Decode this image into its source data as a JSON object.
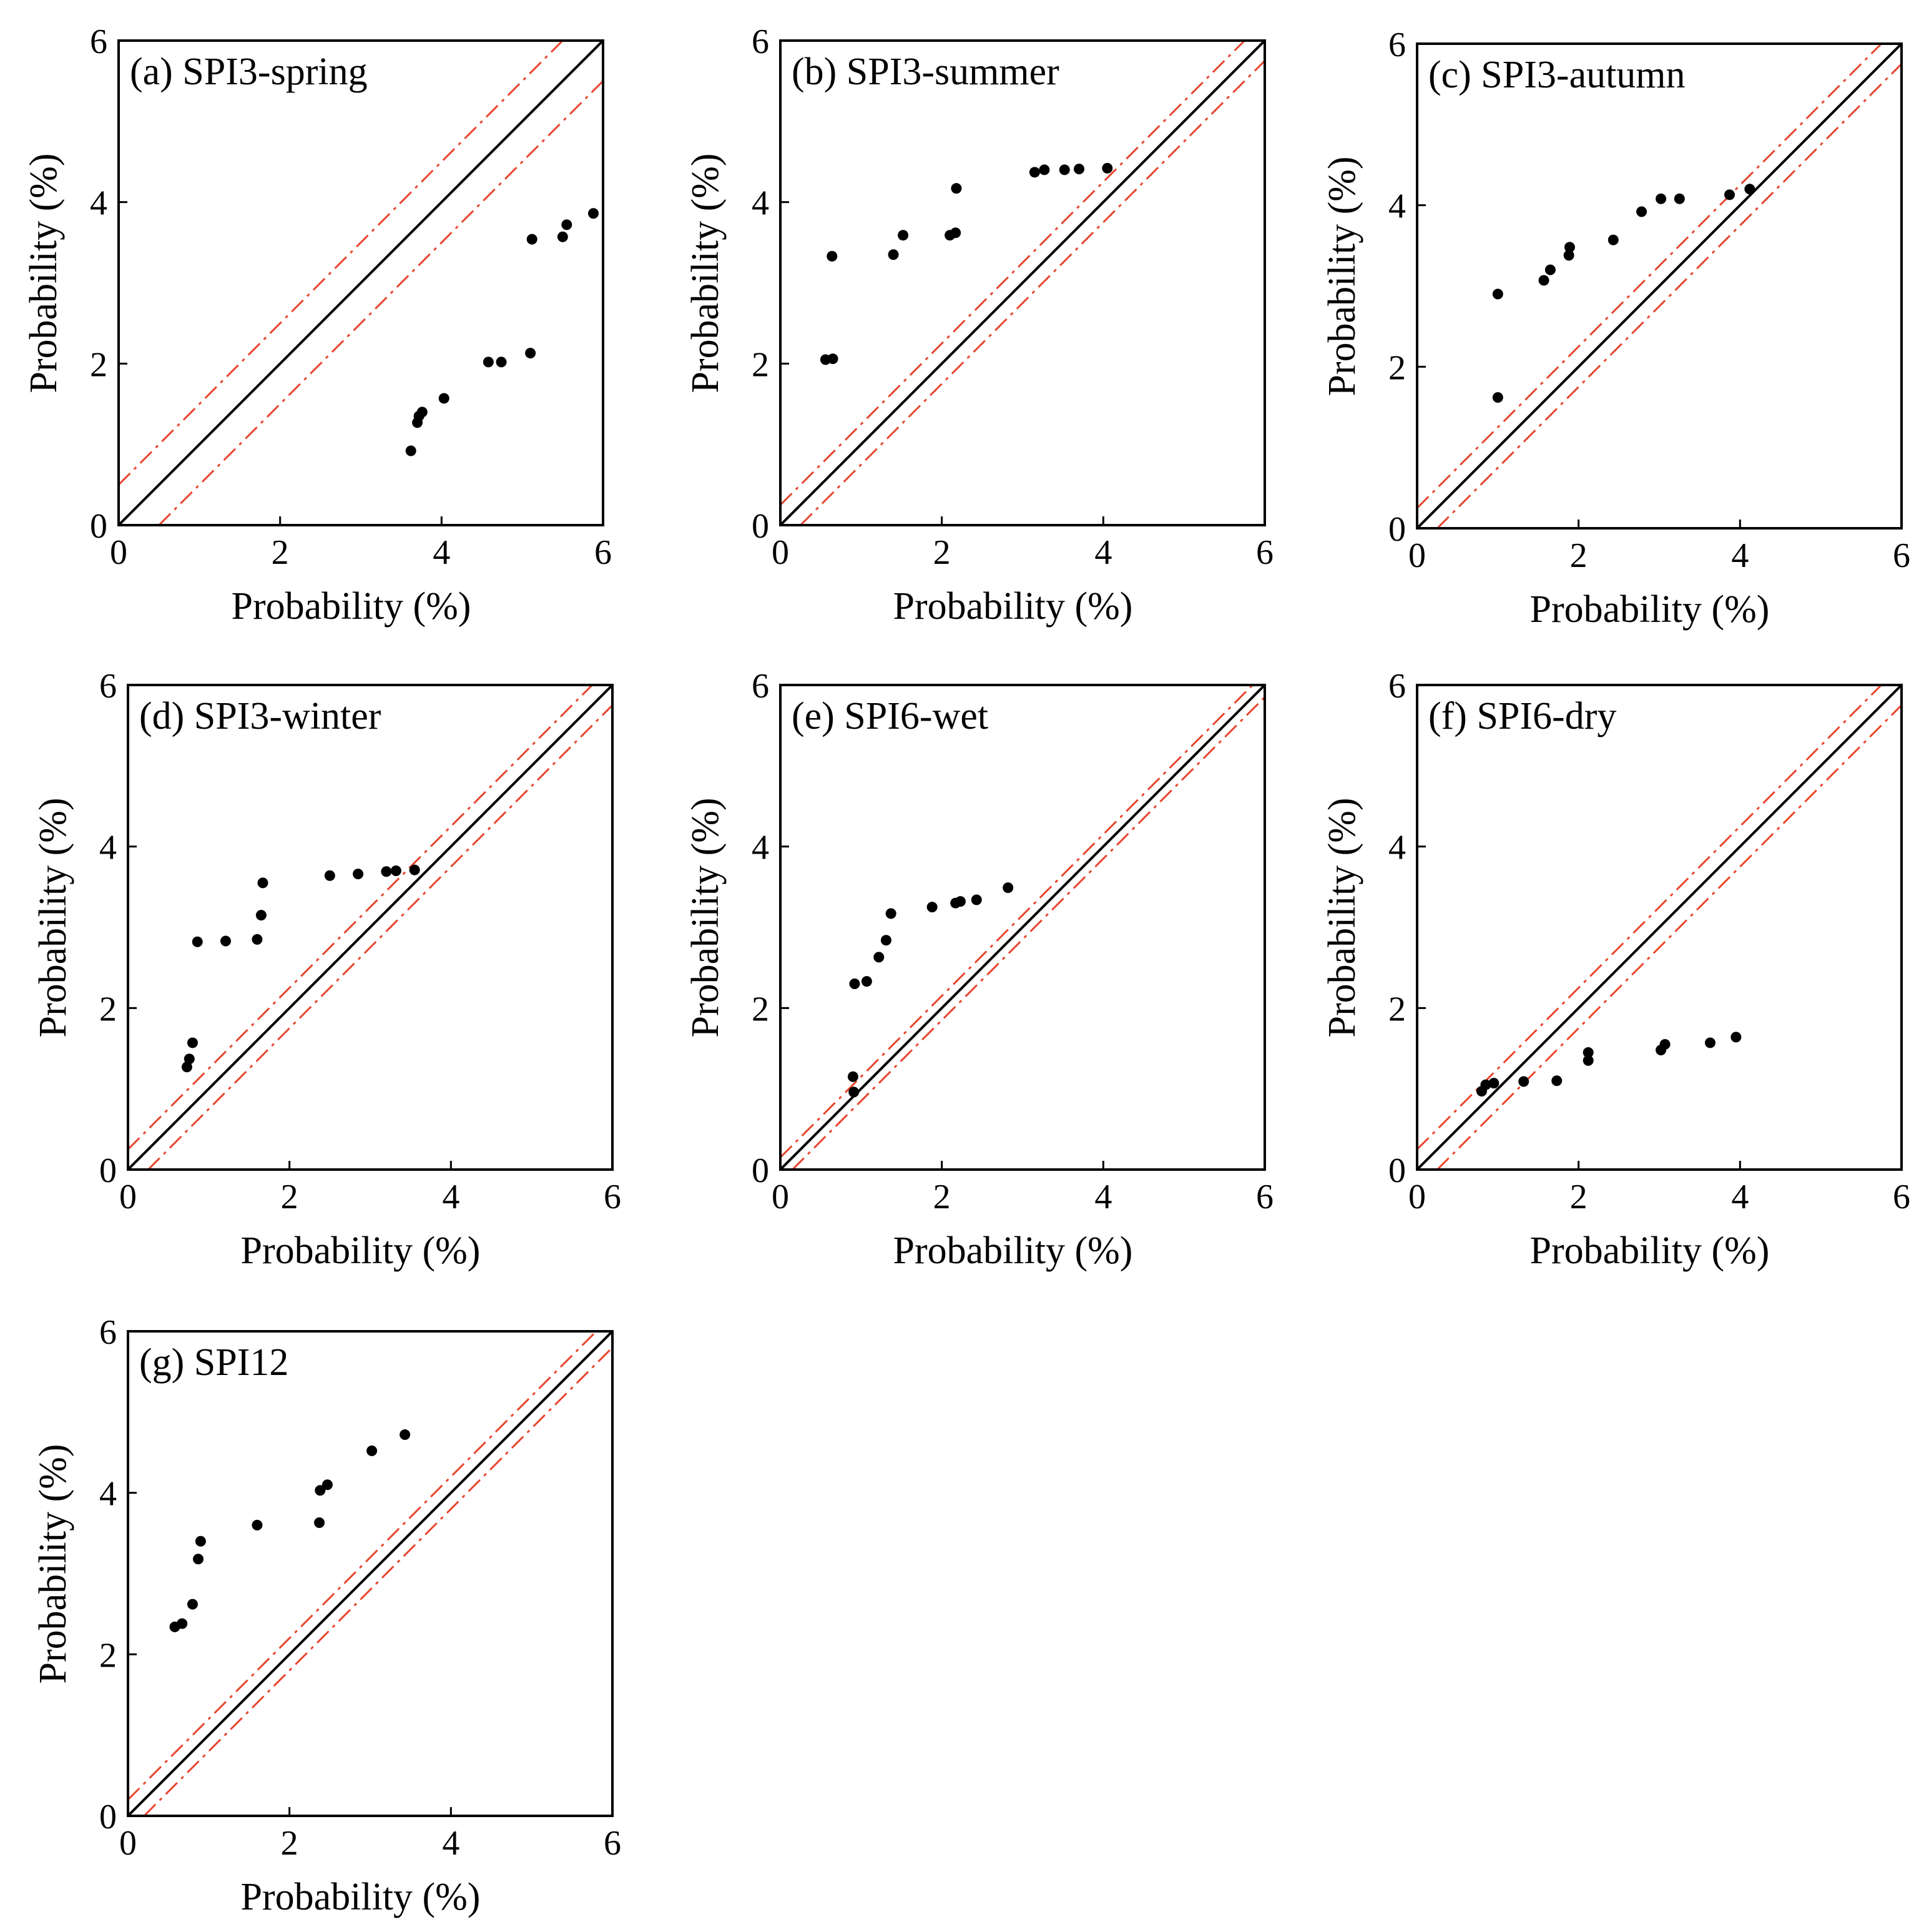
{
  "chart_data": [
    {
      "id": "a",
      "type": "scatter",
      "title": "(a) SPI3-spring",
      "xlabel": "Probability (%)",
      "ylabel": "Probability (%)",
      "xlim": [
        0,
        6
      ],
      "ylim": [
        0,
        6
      ],
      "ticks": [
        0,
        2,
        4,
        6
      ],
      "tick_labels": [
        "0",
        "2",
        "4",
        "6"
      ],
      "band_offset": 0.5,
      "x": [
        3.62,
        3.7,
        3.72,
        3.76,
        4.03,
        4.58,
        4.74,
        5.1,
        5.12,
        5.5,
        5.55,
        5.88
      ],
      "y": [
        0.92,
        1.27,
        1.35,
        1.4,
        1.57,
        2.02,
        2.02,
        2.13,
        3.54,
        3.57,
        3.72,
        3.86
      ]
    },
    {
      "id": "b",
      "type": "scatter",
      "title": "(b) SPI3-summer",
      "xlabel": "Probability (%)",
      "ylabel": "Probability (%)",
      "xlim": [
        0,
        6
      ],
      "ylim": [
        0,
        6
      ],
      "ticks": [
        0,
        2,
        4,
        6
      ],
      "tick_labels": [
        "0",
        "2",
        "4",
        "6"
      ],
      "band_offset": 0.25,
      "x": [
        0.56,
        0.65,
        0.64,
        1.4,
        1.52,
        2.1,
        2.17,
        2.18,
        3.15,
        3.27,
        3.52,
        3.7,
        4.05
      ],
      "y": [
        2.05,
        2.06,
        3.33,
        3.35,
        3.59,
        3.59,
        3.62,
        4.17,
        4.37,
        4.4,
        4.4,
        4.41,
        4.42
      ]
    },
    {
      "id": "c",
      "type": "scatter",
      "title": "(c) SPI3-autumn",
      "xlabel": "Probability (%)",
      "ylabel": "Probability (%)",
      "xlim": [
        0,
        6
      ],
      "ylim": [
        0,
        6
      ],
      "ticks": [
        0,
        2,
        4,
        6
      ],
      "tick_labels": [
        "0",
        "2",
        "4",
        "6"
      ],
      "band_offset": 0.25,
      "x": [
        1.0,
        1.0,
        1.57,
        1.65,
        1.88,
        1.89,
        2.43,
        2.78,
        3.02,
        3.25,
        3.87,
        4.12
      ],
      "y": [
        1.62,
        2.9,
        3.07,
        3.2,
        3.38,
        3.48,
        3.57,
        3.92,
        4.08,
        4.08,
        4.13,
        4.2
      ]
    },
    {
      "id": "d",
      "type": "scatter",
      "title": "(d) SPI3-winter",
      "xlabel": "Probability (%)",
      "ylabel": "Probability (%)",
      "xlim": [
        0,
        6
      ],
      "ylim": [
        0,
        6
      ],
      "ticks": [
        0,
        2,
        4,
        6
      ],
      "tick_labels": [
        "0",
        "2",
        "4",
        "6"
      ],
      "band_offset": 0.25,
      "x": [
        0.73,
        0.76,
        0.8,
        0.86,
        1.21,
        1.6,
        1.65,
        1.67,
        2.5,
        2.85,
        3.2,
        3.32,
        3.55
      ],
      "y": [
        1.27,
        1.37,
        1.57,
        2.82,
        2.83,
        2.85,
        3.15,
        3.55,
        3.64,
        3.66,
        3.69,
        3.7,
        3.71
      ]
    },
    {
      "id": "e",
      "type": "scatter",
      "title": "(e) SPI6-wet",
      "xlabel": "Probability (%)",
      "ylabel": "Probability (%)",
      "xlim": [
        0,
        6
      ],
      "ylim": [
        0,
        6
      ],
      "ticks": [
        0,
        2,
        4,
        6
      ],
      "tick_labels": [
        "0",
        "2",
        "4",
        "6"
      ],
      "band_offset": 0.15,
      "x": [
        0.91,
        0.9,
        0.92,
        1.07,
        1.22,
        1.31,
        1.37,
        1.88,
        2.17,
        2.23,
        2.43,
        2.82
      ],
      "y": [
        0.96,
        1.15,
        2.3,
        2.33,
        2.63,
        2.84,
        3.17,
        3.25,
        3.3,
        3.32,
        3.34,
        3.49
      ]
    },
    {
      "id": "f",
      "type": "scatter",
      "title": "(f) SPI6-dry",
      "xlabel": "Probability (%)",
      "ylabel": "Probability (%)",
      "xlim": [
        0,
        6
      ],
      "ylim": [
        0,
        6
      ],
      "ticks": [
        0,
        2,
        4,
        6
      ],
      "tick_labels": [
        "0",
        "2",
        "4",
        "6"
      ],
      "band_offset": 0.25,
      "x": [
        0.8,
        0.85,
        0.95,
        1.32,
        1.73,
        2.12,
        2.12,
        3.02,
        3.07,
        3.63,
        3.95
      ],
      "y": [
        0.97,
        1.05,
        1.07,
        1.09,
        1.1,
        1.35,
        1.45,
        1.48,
        1.55,
        1.57,
        1.64
      ]
    },
    {
      "id": "g",
      "type": "scatter",
      "title": "(g) SPI12",
      "xlabel": "Probability (%)",
      "ylabel": "Probability (%)",
      "xlim": [
        0,
        6
      ],
      "ylim": [
        0,
        6
      ],
      "ticks": [
        0,
        2,
        4,
        6
      ],
      "tick_labels": [
        "0",
        "2",
        "4",
        "6"
      ],
      "band_offset": 0.2,
      "x": [
        0.58,
        0.67,
        0.8,
        0.87,
        0.9,
        1.6,
        2.37,
        2.38,
        2.47,
        3.02,
        3.43
      ],
      "y": [
        2.34,
        2.38,
        2.62,
        3.18,
        3.4,
        3.6,
        3.63,
        4.03,
        4.1,
        4.52,
        4.72
      ]
    }
  ]
}
